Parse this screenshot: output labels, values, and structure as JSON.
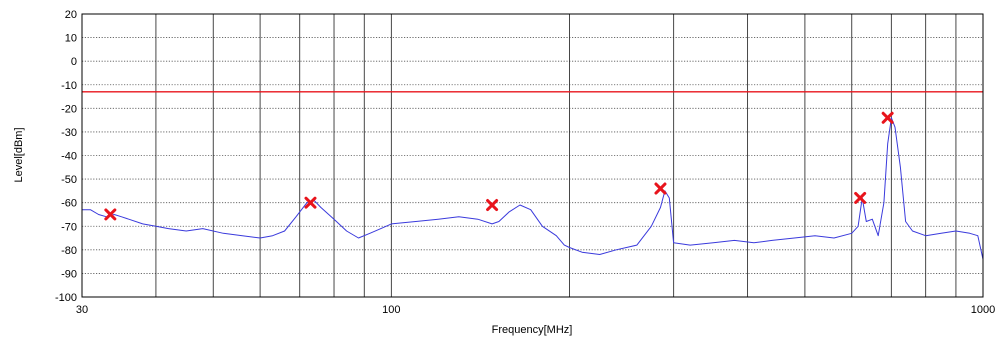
{
  "chart_data": {
    "type": "line",
    "title": "",
    "xlabel": "Frequency[MHz]",
    "ylabel": "Level[dBm]",
    "xscale": "log",
    "xlim": [
      30,
      1000
    ],
    "ylim": [
      -100,
      20
    ],
    "x_tick_labels": [
      {
        "value": 30,
        "label": "30"
      },
      {
        "value": 100,
        "label": "100"
      },
      {
        "value": 1000,
        "label": "1000"
      }
    ],
    "y_ticks": [
      20,
      10,
      0,
      -10,
      -20,
      -30,
      -40,
      -50,
      -60,
      -70,
      -80,
      -90,
      -100
    ],
    "grid": true,
    "limit_line": {
      "value": -13,
      "color": "#e8141c"
    },
    "series": [
      {
        "color": "#3a3adc",
        "x": [
          30,
          31,
          32,
          33,
          34,
          35,
          36,
          38,
          40,
          42,
          45,
          48,
          52,
          56,
          60,
          63,
          66,
          69,
          72,
          74,
          76,
          80,
          84,
          88,
          92,
          96,
          100,
          110,
          120,
          130,
          140,
          148,
          152,
          158,
          165,
          172,
          180,
          190,
          196,
          200,
          210,
          225,
          240,
          260,
          275,
          285,
          290,
          295,
          300,
          320,
          350,
          380,
          410,
          440,
          480,
          520,
          560,
          600,
          615,
          625,
          635,
          650,
          665,
          680,
          690,
          700,
          710,
          725,
          740,
          760,
          800,
          850,
          900,
          950,
          980,
          1000
        ],
        "y": [
          -63,
          -63,
          -65,
          -66,
          -65,
          -66,
          -67,
          -69,
          -70,
          -71,
          -72,
          -71,
          -73,
          -74,
          -75,
          -74,
          -72,
          -66,
          -60,
          -59,
          -62,
          -67,
          -72,
          -75,
          -73,
          -71,
          -69,
          -68,
          -67,
          -66,
          -67,
          -69,
          -68,
          -64,
          -61,
          -63,
          -70,
          -74,
          -78,
          -79,
          -81,
          -82,
          -80,
          -78,
          -70,
          -62,
          -55,
          -58,
          -77,
          -78,
          -77,
          -76,
          -77,
          -76,
          -75,
          -74,
          -75,
          -73,
          -70,
          -58,
          -68,
          -67,
          -74,
          -60,
          -35,
          -24,
          -28,
          -45,
          -68,
          -72,
          -74,
          -73,
          -72,
          -73,
          -74,
          -84
        ]
      }
    ],
    "markers": [
      {
        "x": 33.5,
        "y": -65
      },
      {
        "x": 73,
        "y": -60
      },
      {
        "x": 148,
        "y": -61
      },
      {
        "x": 285,
        "y": -54
      },
      {
        "x": 620,
        "y": -58
      },
      {
        "x": 690,
        "y": -24
      }
    ],
    "marker_color": "#e8141c"
  }
}
